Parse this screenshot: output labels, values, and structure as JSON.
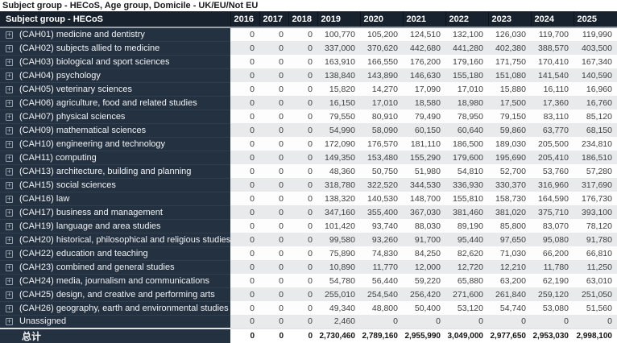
{
  "title": "Subject group - HECoS, Age group, Domicile - UK/EU/Not EU",
  "colors": {
    "header_bg": "#18222e",
    "row_label_bg": "#243140",
    "stripe_gray": "#e9eaeb",
    "stripe_white": "#fdfdfd",
    "header_text": "#ffffff",
    "value_text": "#3f3f3f"
  },
  "icons": {
    "expand_icon_glyph": "+"
  },
  "table": {
    "label_header": "Subject group - HECoS",
    "year_headers": [
      "2016",
      "2017",
      "2018",
      "2019",
      "2020",
      "2021",
      "2022",
      "2023",
      "2024",
      "2025"
    ],
    "rows": [
      {
        "label": "(CAH01) medicine and dentistry",
        "expandable": true,
        "values": [
          "0",
          "0",
          "0",
          "100,770",
          "105,200",
          "124,510",
          "132,100",
          "126,030",
          "119,700",
          "119,990"
        ]
      },
      {
        "label": "(CAH02) subjects allied to medicine",
        "expandable": true,
        "values": [
          "0",
          "0",
          "0",
          "337,000",
          "370,620",
          "442,680",
          "441,280",
          "402,380",
          "388,570",
          "403,500"
        ]
      },
      {
        "label": "(CAH03) biological and sport sciences",
        "expandable": true,
        "values": [
          "0",
          "0",
          "0",
          "163,910",
          "166,550",
          "176,200",
          "179,160",
          "171,750",
          "170,410",
          "167,340"
        ]
      },
      {
        "label": "(CAH04) psychology",
        "expandable": true,
        "values": [
          "0",
          "0",
          "0",
          "138,840",
          "143,890",
          "146,630",
          "155,180",
          "151,080",
          "141,540",
          "140,590"
        ]
      },
      {
        "label": "(CAH05) veterinary sciences",
        "expandable": true,
        "values": [
          "0",
          "0",
          "0",
          "15,820",
          "14,270",
          "17,090",
          "17,010",
          "15,880",
          "16,110",
          "16,960"
        ]
      },
      {
        "label": "(CAH06) agriculture, food and related studies",
        "expandable": true,
        "values": [
          "0",
          "0",
          "0",
          "16,150",
          "17,010",
          "18,580",
          "18,980",
          "17,500",
          "17,360",
          "16,760"
        ]
      },
      {
        "label": "(CAH07) physical sciences",
        "expandable": true,
        "values": [
          "0",
          "0",
          "0",
          "79,550",
          "80,910",
          "79,490",
          "78,950",
          "79,150",
          "83,110",
          "85,120"
        ]
      },
      {
        "label": "(CAH09) mathematical sciences",
        "expandable": true,
        "values": [
          "0",
          "0",
          "0",
          "54,990",
          "58,090",
          "60,150",
          "60,640",
          "59,860",
          "63,770",
          "68,150"
        ]
      },
      {
        "label": "(CAH10) engineering and technology",
        "expandable": true,
        "values": [
          "0",
          "0",
          "0",
          "172,090",
          "176,570",
          "181,110",
          "186,500",
          "189,030",
          "205,500",
          "234,810"
        ]
      },
      {
        "label": "(CAH11) computing",
        "expandable": true,
        "values": [
          "0",
          "0",
          "0",
          "149,350",
          "153,480",
          "155,290",
          "179,600",
          "195,690",
          "205,410",
          "186,510"
        ]
      },
      {
        "label": "(CAH13) architecture, building and planning",
        "expandable": true,
        "values": [
          "0",
          "0",
          "0",
          "48,360",
          "50,750",
          "51,980",
          "54,810",
          "52,700",
          "53,760",
          "57,280"
        ]
      },
      {
        "label": "(CAH15) social sciences",
        "expandable": true,
        "values": [
          "0",
          "0",
          "0",
          "318,780",
          "322,520",
          "344,530",
          "336,930",
          "330,370",
          "316,960",
          "317,690"
        ]
      },
      {
        "label": "(CAH16) law",
        "expandable": true,
        "values": [
          "0",
          "0",
          "0",
          "138,320",
          "140,530",
          "148,700",
          "155,810",
          "158,730",
          "164,590",
          "176,730"
        ]
      },
      {
        "label": "(CAH17) business and management",
        "expandable": true,
        "values": [
          "0",
          "0",
          "0",
          "347,160",
          "355,400",
          "367,030",
          "381,460",
          "381,020",
          "375,710",
          "393,100"
        ]
      },
      {
        "label": "(CAH19) language and area studies",
        "expandable": true,
        "values": [
          "0",
          "0",
          "0",
          "101,420",
          "93,740",
          "88,030",
          "89,190",
          "85,800",
          "83,070",
          "78,120"
        ]
      },
      {
        "label": "(CAH20) historical, philosophical and religious studies",
        "expandable": true,
        "values": [
          "0",
          "0",
          "0",
          "99,580",
          "93,260",
          "91,700",
          "95,440",
          "97,650",
          "95,080",
          "91,780"
        ]
      },
      {
        "label": "(CAH22) education and teaching",
        "expandable": true,
        "values": [
          "0",
          "0",
          "0",
          "75,890",
          "74,830",
          "84,250",
          "82,620",
          "71,030",
          "66,200",
          "66,810"
        ]
      },
      {
        "label": "(CAH23) combined and general studies",
        "expandable": true,
        "values": [
          "0",
          "0",
          "0",
          "10,890",
          "11,770",
          "12,000",
          "12,720",
          "12,210",
          "11,780",
          "11,250"
        ]
      },
      {
        "label": "(CAH24) media, journalism and communications",
        "expandable": true,
        "values": [
          "0",
          "0",
          "0",
          "54,780",
          "56,440",
          "59,220",
          "65,880",
          "63,200",
          "62,190",
          "63,010"
        ]
      },
      {
        "label": "(CAH25) design, and creative and performing arts",
        "expandable": true,
        "values": [
          "0",
          "0",
          "0",
          "255,010",
          "254,540",
          "256,420",
          "271,600",
          "261,840",
          "259,120",
          "251,050"
        ]
      },
      {
        "label": "(CAH26) geography, earth and environmental studies",
        "expandable": true,
        "values": [
          "0",
          "0",
          "0",
          "49,340",
          "48,800",
          "50,400",
          "53,120",
          "54,740",
          "53,080",
          "51,560"
        ]
      },
      {
        "label": "Unassigned",
        "expandable": true,
        "values": [
          "0",
          "0",
          "0",
          "2,460",
          "0",
          "0",
          "0",
          "0",
          "0",
          "0"
        ]
      }
    ],
    "total_row": {
      "label": "总计",
      "values": [
        "0",
        "0",
        "0",
        "2,730,460",
        "2,789,160",
        "2,955,990",
        "3,049,000",
        "2,977,650",
        "2,953,030",
        "2,998,100"
      ]
    }
  }
}
